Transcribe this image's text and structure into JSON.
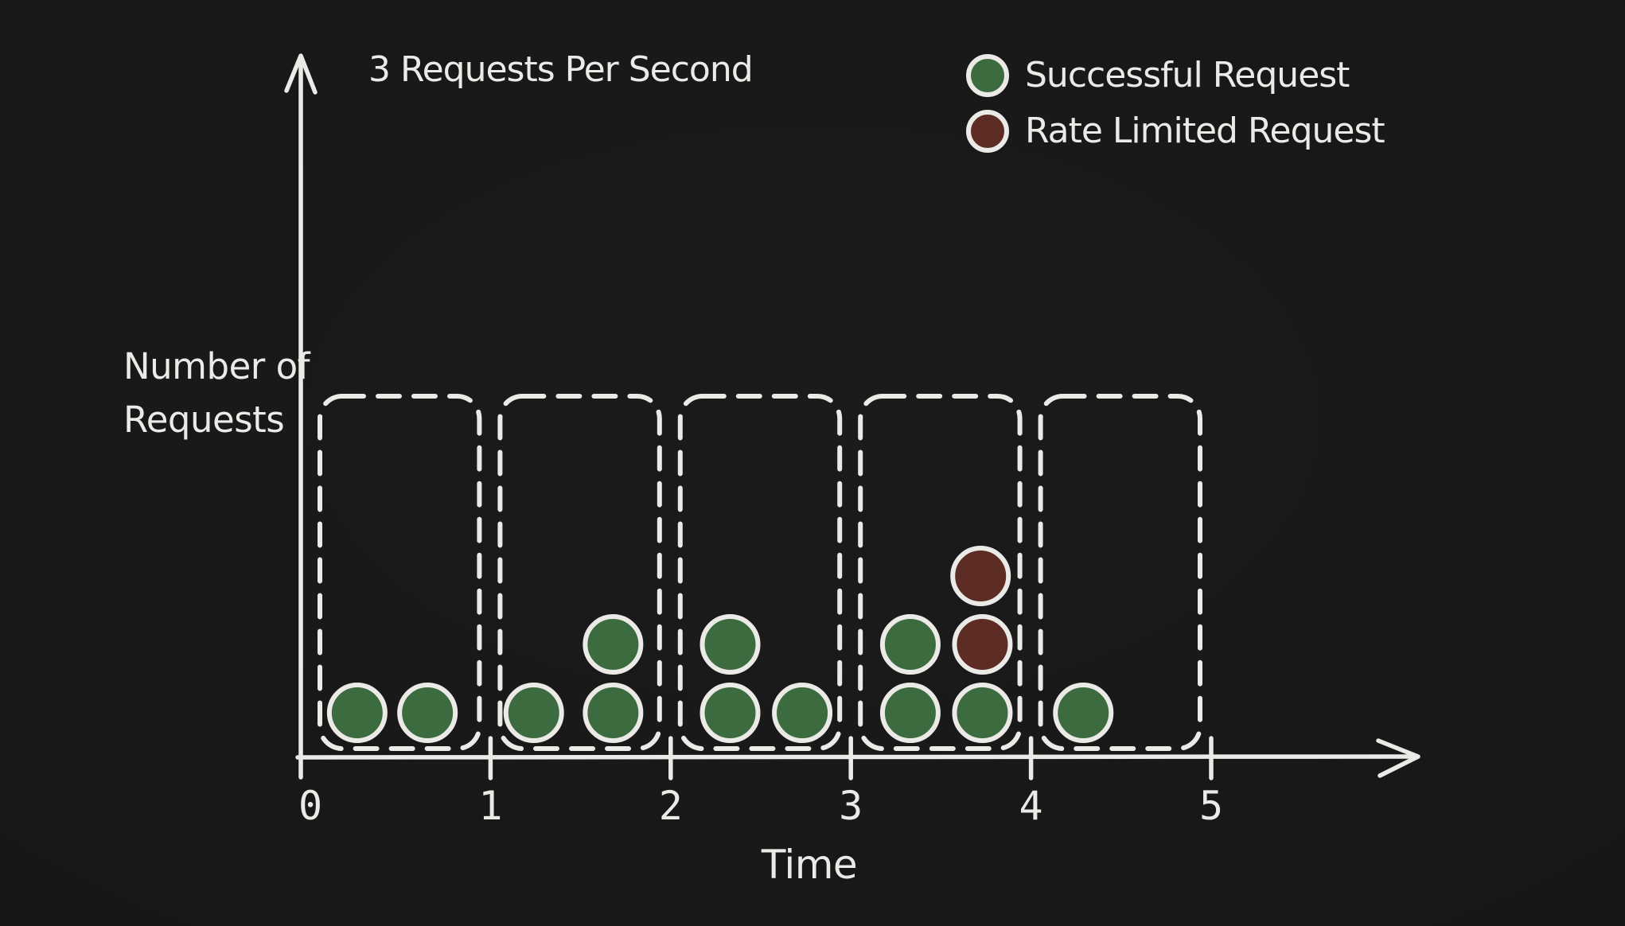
{
  "title": "3 Requests Per Second",
  "legend": {
    "items": [
      {
        "label": "Successful Request",
        "key": "success"
      },
      {
        "label": "Rate Limited Request",
        "key": "rate_limited"
      }
    ]
  },
  "axes": {
    "x_label": "Time",
    "y_label_line1": "Number of",
    "y_label_line2": "Requests",
    "x_tick_labels": [
      "0",
      "1",
      "2",
      "3",
      "4",
      "5"
    ]
  },
  "colors": {
    "background": "#171717",
    "ink": "#eceae6",
    "success": "#3d6b40",
    "rate_limited": "#5d2c25"
  },
  "chart_data": {
    "type": "scatter",
    "title": "3 Requests Per Second",
    "xlabel": "Time",
    "ylabel": "Number of Requests",
    "x_range": [
      0,
      5
    ],
    "x_ticks": [
      0,
      1,
      2,
      3,
      4,
      5
    ],
    "grid": false,
    "legend_position": "top-right",
    "legend": [
      "Successful Request",
      "Rate Limited Request"
    ],
    "rate_limit_per_second": 3,
    "windows": [
      {
        "interval": [
          0,
          1
        ],
        "successful": 2,
        "rate_limited": 0
      },
      {
        "interval": [
          1,
          2
        ],
        "successful": 3,
        "rate_limited": 0
      },
      {
        "interval": [
          2,
          3
        ],
        "successful": 3,
        "rate_limited": 0
      },
      {
        "interval": [
          3,
          4
        ],
        "successful": 3,
        "rate_limited": 2
      },
      {
        "interval": [
          4,
          5
        ],
        "successful": 1,
        "rate_limited": 0
      }
    ],
    "requests": [
      {
        "t": 0.26,
        "stack_row": 0,
        "status": "success"
      },
      {
        "t": 0.65,
        "stack_row": 0,
        "status": "success"
      },
      {
        "t": 1.24,
        "stack_row": 0,
        "status": "success"
      },
      {
        "t": 1.68,
        "stack_row": 0,
        "status": "success"
      },
      {
        "t": 1.68,
        "stack_row": 1,
        "status": "success"
      },
      {
        "t": 2.33,
        "stack_row": 0,
        "status": "success"
      },
      {
        "t": 2.73,
        "stack_row": 0,
        "status": "success"
      },
      {
        "t": 2.33,
        "stack_row": 1,
        "status": "success"
      },
      {
        "t": 3.33,
        "stack_row": 0,
        "status": "success"
      },
      {
        "t": 3.73,
        "stack_row": 0,
        "status": "success"
      },
      {
        "t": 3.33,
        "stack_row": 1,
        "status": "success"
      },
      {
        "t": 3.73,
        "stack_row": 1,
        "status": "rate_limited"
      },
      {
        "t": 3.72,
        "stack_row": 2,
        "status": "rate_limited"
      },
      {
        "t": 4.29,
        "stack_row": 0,
        "status": "success"
      }
    ]
  }
}
